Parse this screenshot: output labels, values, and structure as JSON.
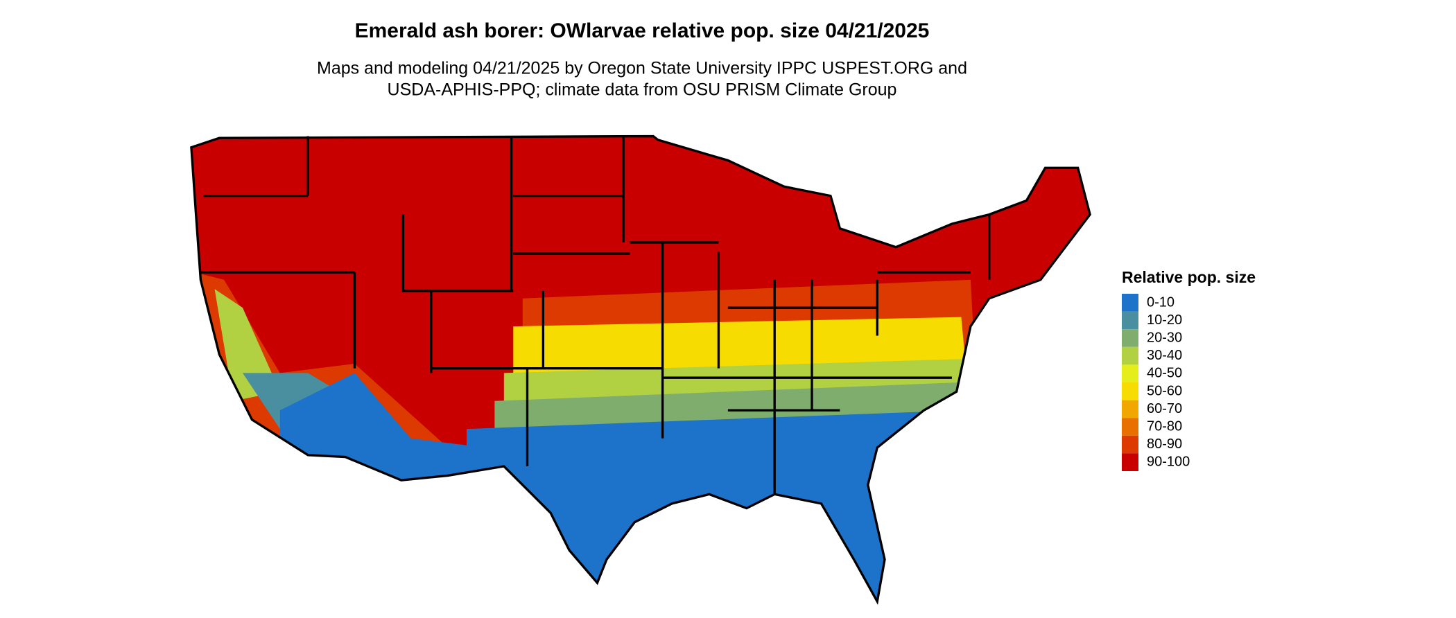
{
  "header": {
    "title": "Emerald ash borer: OWlarvae relative pop. size 04/21/2025",
    "subtitle_lines": [
      "Maps and modeling 04/21/2025 by Oregon State University IPPC USPEST.ORG and",
      "USDA-APHIS-PPQ; climate data from OSU PRISM Climate Group"
    ]
  },
  "legend": {
    "title": "Relative pop. size",
    "items": [
      {
        "label": "0-10",
        "color": "#1c73c9"
      },
      {
        "label": "10-20",
        "color": "#4a8fa0"
      },
      {
        "label": "20-30",
        "color": "#7fad6e"
      },
      {
        "label": "30-40",
        "color": "#b1d142"
      },
      {
        "label": "40-50",
        "color": "#e5ee1a"
      },
      {
        "label": "50-60",
        "color": "#f6dc00"
      },
      {
        "label": "60-70",
        "color": "#f0a800"
      },
      {
        "label": "70-80",
        "color": "#e87000"
      },
      {
        "label": "80-90",
        "color": "#dc3a00"
      },
      {
        "label": "90-100",
        "color": "#c80000"
      }
    ]
  }
}
